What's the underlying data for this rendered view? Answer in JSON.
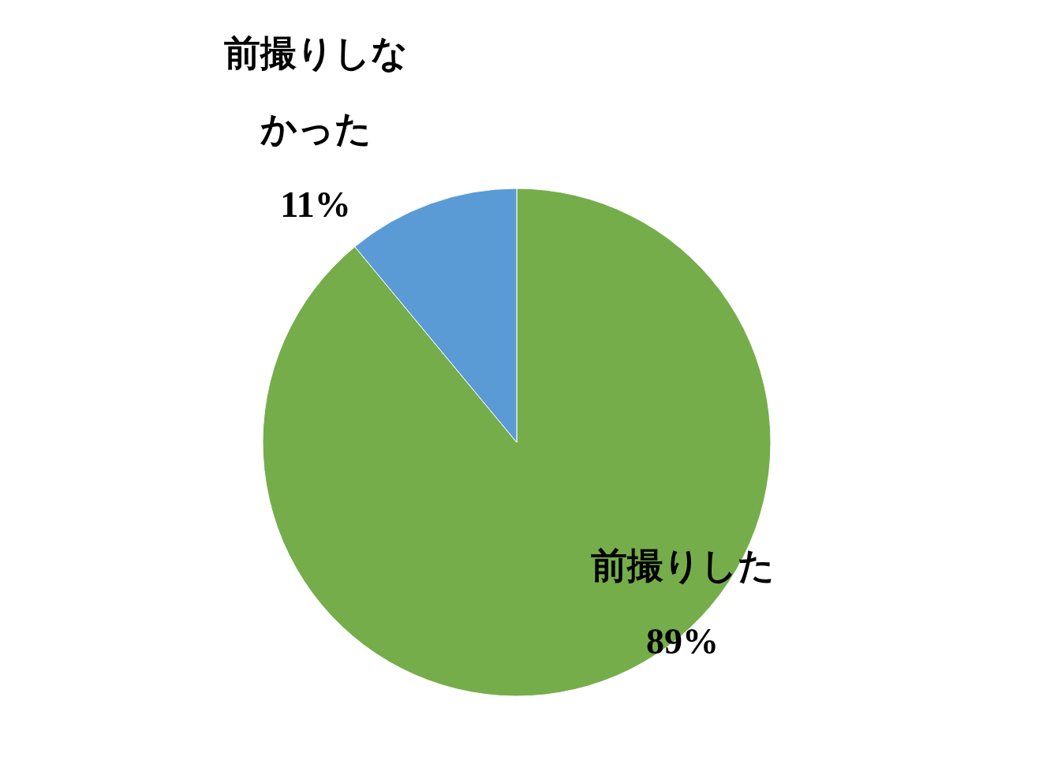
{
  "chart_data": {
    "type": "pie",
    "categories": [
      "前撮りした",
      "前撮りしなかった"
    ],
    "values": [
      89,
      11
    ],
    "colors": [
      "#75ad4b",
      "#5b9bd5"
    ],
    "value_labels": [
      "89%",
      "11%"
    ]
  }
}
